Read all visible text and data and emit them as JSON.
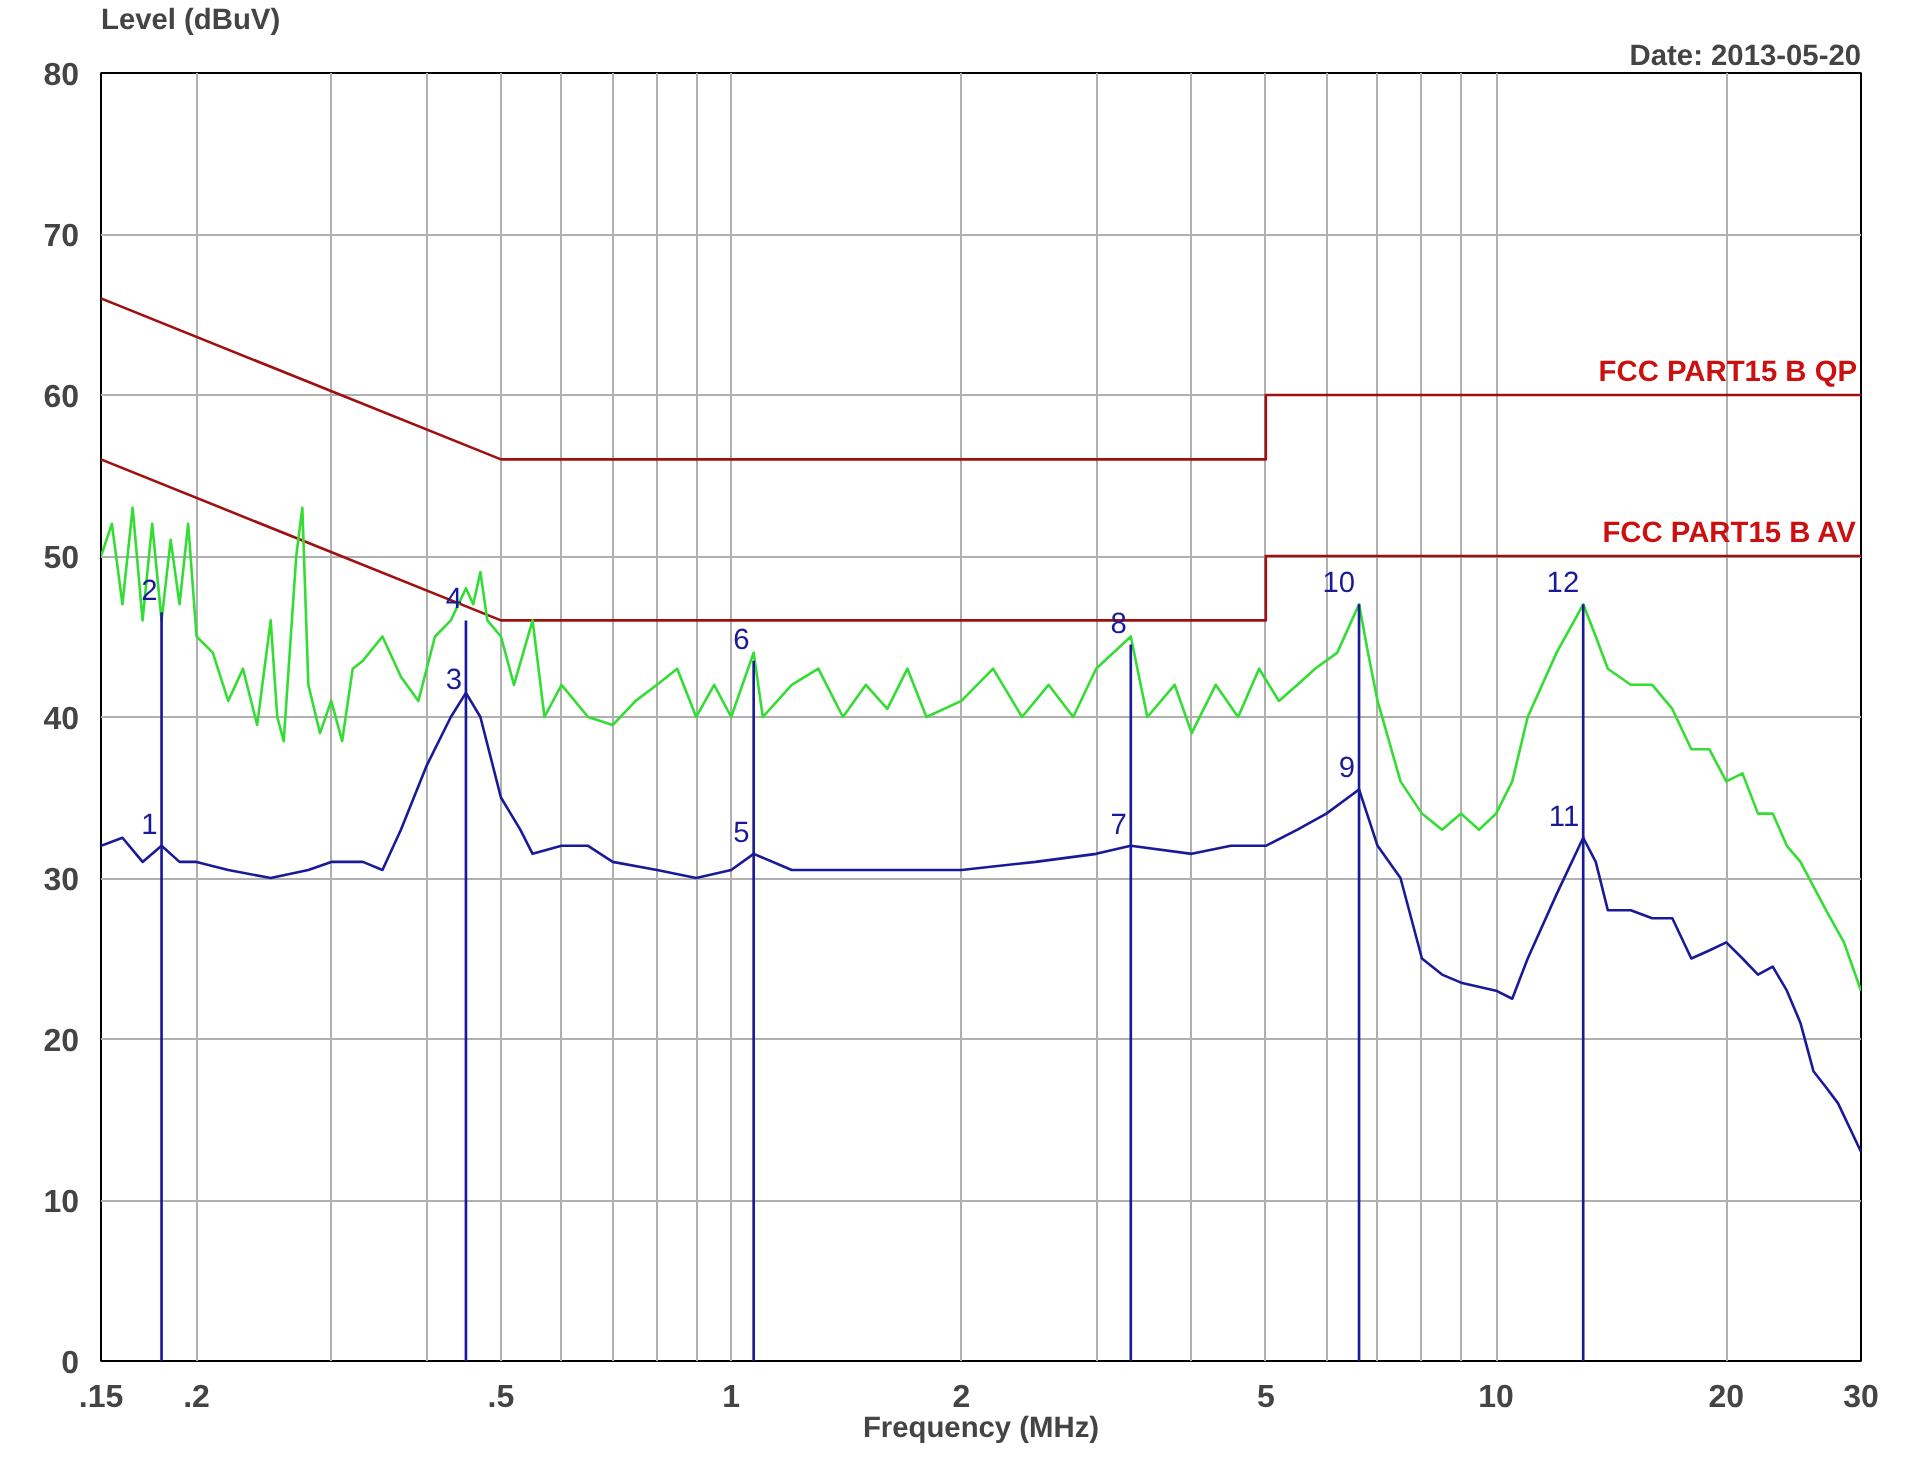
{
  "chart_data": {
    "type": "line",
    "ylabel": "Level (dBuV)",
    "xlabel": "Frequency (MHz)",
    "log": "x",
    "grid": true,
    "xlim": [
      0.15,
      30
    ],
    "ylim": [
      0,
      80
    ],
    "xticks": [
      {
        "value": 0.15,
        "label": ".15"
      },
      {
        "value": 0.2,
        "label": ".2"
      },
      {
        "value": 0.3,
        "label": null
      },
      {
        "value": 0.4,
        "label": null
      },
      {
        "value": 0.5,
        "label": ".5"
      },
      {
        "value": 0.6,
        "label": null
      },
      {
        "value": 0.7,
        "label": null
      },
      {
        "value": 0.8,
        "label": null
      },
      {
        "value": 0.9,
        "label": null
      },
      1,
      2,
      {
        "value": 3,
        "label": null
      },
      {
        "value": 4,
        "label": null
      },
      5,
      {
        "value": 6,
        "label": null
      },
      {
        "value": 7,
        "label": null
      },
      {
        "value": 8,
        "label": null
      },
      {
        "value": 9,
        "label": null
      },
      10,
      20,
      30
    ],
    "yticks": [
      0,
      10,
      20,
      30,
      40,
      50,
      60,
      70,
      80
    ],
    "annotations": [
      "Date: 2013-05-20",
      {
        "text": "1",
        "x": 0.18,
        "y": 32
      },
      {
        "text": "2",
        "x": 0.18,
        "y": 46.5
      },
      {
        "text": "3",
        "x": 0.45,
        "y": 41
      },
      {
        "text": "4",
        "x": 0.45,
        "y": 46
      },
      {
        "text": "5",
        "x": 1.07,
        "y": 31.5
      },
      {
        "text": "6",
        "x": 1.07,
        "y": 43.5
      },
      {
        "text": "7",
        "x": 3.33,
        "y": 32
      },
      {
        "text": "8",
        "x": 3.33,
        "y": 44.5
      },
      {
        "text": "9",
        "x": 6.62,
        "y": 35.5
      },
      {
        "text": "10",
        "x": 6.62,
        "y": 47
      },
      {
        "text": "11",
        "x": 13,
        "y": 32.5
      },
      {
        "text": "12",
        "x": 13,
        "y": 47
      }
    ],
    "series": [
      {
        "name": "FCC PART15 B QP",
        "color": "#a01010",
        "x": [
          0.15,
          0.5,
          5,
          5,
          30
        ],
        "values": [
          66,
          56,
          56,
          60,
          60
        ]
      },
      {
        "name": "FCC PART15 B AV",
        "color": "#a01010",
        "x": [
          0.15,
          0.5,
          5,
          5,
          30
        ],
        "values": [
          56,
          46,
          46,
          50,
          50
        ]
      },
      {
        "color": "#33dd33",
        "x": [
          0.15,
          0.155,
          0.16,
          0.165,
          0.17,
          0.175,
          0.18,
          0.185,
          0.19,
          0.195,
          0.2,
          0.21,
          0.22,
          0.23,
          0.24,
          0.25,
          0.255,
          0.26,
          0.27,
          0.275,
          0.28,
          0.29,
          0.3,
          0.31,
          0.32,
          0.33,
          0.35,
          0.37,
          0.39,
          0.41,
          0.43,
          0.45,
          0.46,
          0.47,
          0.48,
          0.5,
          0.52,
          0.55,
          0.57,
          0.6,
          0.65,
          0.7,
          0.75,
          0.8,
          0.85,
          0.9,
          0.95,
          1.0,
          1.07,
          1.1,
          1.2,
          1.3,
          1.4,
          1.5,
          1.6,
          1.7,
          1.8,
          2.0,
          2.2,
          2.4,
          2.6,
          2.8,
          3.0,
          3.33,
          3.5,
          3.8,
          4.0,
          4.3,
          4.6,
          4.9,
          5.2,
          5.5,
          5.8,
          6.2,
          6.62,
          6.8,
          7.0,
          7.5,
          8,
          8.5,
          9,
          9.5,
          10,
          10.5,
          11,
          12,
          13,
          13.5,
          14,
          15,
          16,
          17,
          18,
          19,
          20,
          21,
          22,
          23,
          24,
          25,
          27,
          28.5,
          30
        ],
        "values": [
          50,
          52,
          47,
          53,
          46,
          52,
          46,
          51,
          47,
          52,
          45,
          44,
          41,
          43,
          39.5,
          46,
          40,
          38.5,
          50,
          53,
          42,
          39,
          41,
          38.5,
          43,
          43.5,
          45,
          42.5,
          41,
          45,
          46,
          48,
          47,
          49,
          46,
          45,
          42,
          46,
          40,
          42,
          40,
          39.5,
          41,
          42,
          43,
          40,
          42,
          40,
          44,
          40,
          42,
          43,
          40,
          42,
          40.5,
          43,
          40,
          41,
          43,
          40,
          42,
          40,
          43,
          45,
          40,
          42,
          39,
          42,
          40,
          43,
          41,
          42,
          43,
          44,
          47,
          44,
          41,
          36,
          34,
          33,
          34,
          33,
          34,
          36,
          40,
          44,
          47,
          45,
          43,
          42,
          42,
          40.5,
          38,
          38,
          36,
          36.5,
          34,
          34,
          32,
          31,
          28,
          26,
          23
        ]
      },
      {
        "color": "#1a1a99",
        "x": [
          0.15,
          0.16,
          0.17,
          0.18,
          0.19,
          0.2,
          0.22,
          0.25,
          0.28,
          0.3,
          0.33,
          0.35,
          0.37,
          0.4,
          0.43,
          0.45,
          0.47,
          0.5,
          0.53,
          0.55,
          0.6,
          0.65,
          0.7,
          0.8,
          0.9,
          1.0,
          1.07,
          1.2,
          1.5,
          2,
          2.5,
          3,
          3.33,
          4,
          4.5,
          5,
          5.5,
          6,
          6.62,
          7.0,
          7.5,
          8,
          8.5,
          9,
          10,
          10.5,
          11,
          12,
          13,
          13.5,
          14,
          15,
          16,
          17,
          18,
          19,
          20,
          21,
          22,
          23,
          24,
          25,
          26,
          27,
          28,
          30
        ],
        "values": [
          32,
          32.5,
          31,
          32,
          31,
          31,
          30.5,
          30,
          30.5,
          31,
          31,
          30.5,
          33,
          37,
          40,
          41.5,
          40,
          35,
          33,
          31.5,
          32,
          32,
          31,
          30.5,
          30,
          30.5,
          31.5,
          30.5,
          30.5,
          30.5,
          31,
          31.5,
          32,
          31.5,
          32,
          32,
          33,
          34,
          35.5,
          32,
          30,
          25,
          24,
          23.5,
          23,
          22.5,
          25,
          29,
          32.5,
          31,
          28,
          28,
          27.5,
          27.5,
          25,
          25.5,
          26,
          25,
          24,
          24.5,
          23,
          21,
          18,
          17,
          16,
          13
        ]
      },
      {
        "type": "bar",
        "color": "#1a1a99",
        "x": [
          0.18,
          0.45,
          1.07,
          3.33,
          6.62,
          13
        ],
        "values": [
          46.5,
          46,
          43.5,
          44.5,
          47,
          47
        ]
      }
    ]
  }
}
